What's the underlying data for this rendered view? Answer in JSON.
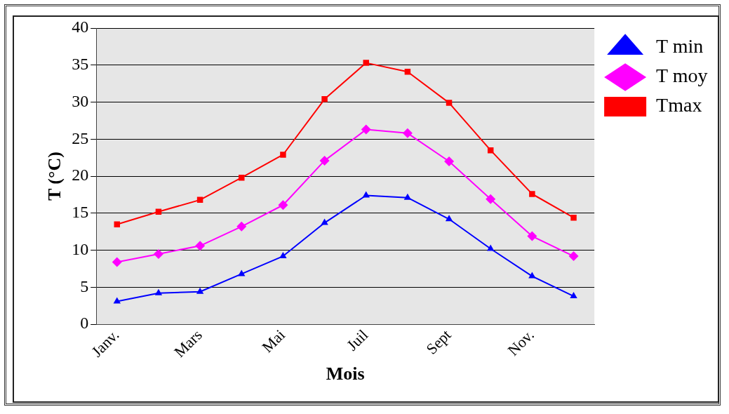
{
  "chart_data": {
    "type": "line",
    "xlabel": "Mois",
    "ylabel": "T (°C)",
    "categories": [
      "Janv.",
      null,
      "Mars",
      null,
      "Mai",
      null,
      "Juil",
      null,
      "Sept",
      null,
      "Nov.",
      null
    ],
    "series": [
      {
        "name": "T min",
        "color": "#0000ff",
        "marker": "triangle",
        "values": [
          3.1,
          4.2,
          4.4,
          6.8,
          9.2,
          13.7,
          17.4,
          17.1,
          14.2,
          10.2,
          6.5,
          3.8
        ]
      },
      {
        "name": "T moy",
        "color": "#ff00ff",
        "marker": "diamond",
        "values": [
          8.4,
          9.5,
          10.6,
          13.2,
          16.1,
          22.1,
          26.3,
          25.8,
          22.0,
          16.9,
          11.9,
          9.2
        ]
      },
      {
        "name": "Tmax",
        "color": "#ff0000",
        "marker": "square",
        "values": [
          13.5,
          15.2,
          16.8,
          19.8,
          22.9,
          30.4,
          35.3,
          34.1,
          29.9,
          23.5,
          17.6,
          14.4
        ]
      }
    ],
    "ylim": [
      0,
      40
    ],
    "yticks": [
      0,
      5,
      10,
      15,
      20,
      25,
      30,
      35,
      40
    ],
    "grid": "y",
    "legend": "right",
    "line_style": "solid"
  }
}
